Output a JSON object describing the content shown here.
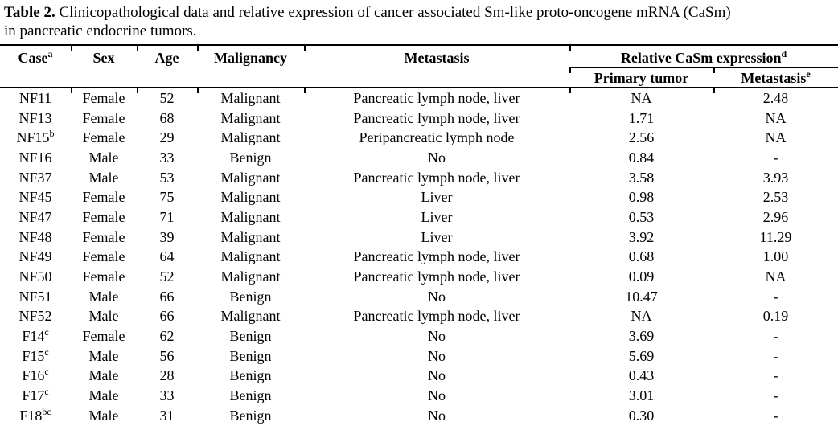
{
  "caption": {
    "label": "Table 2.",
    "line1": "Clinicopathological data and relative expression of cancer associated Sm-like proto-oncogene mRNA (CaSm)",
    "line2": "in pancreatic endocrine tumors."
  },
  "table": {
    "headers": {
      "case": {
        "label": "Case",
        "sup": "a"
      },
      "sex": "Sex",
      "age": "Age",
      "malignancy": "Malignancy",
      "metastasis": "Metastasis",
      "casm_group": {
        "label": "Relative CaSm expression",
        "sup": "d"
      },
      "primary_tumor": "Primary tumor",
      "metastasis_expr": {
        "label": "Metastasis",
        "sup": "e"
      }
    },
    "rows": [
      {
        "case": "NF11",
        "case_sup": "",
        "sex": "Female",
        "age": "52",
        "malignancy": "Malignant",
        "metastasis": "Pancreatic lymph node, liver",
        "primary_tumor": "NA",
        "metastasis_expr": "2.48"
      },
      {
        "case": "NF13",
        "case_sup": "",
        "sex": "Female",
        "age": "68",
        "malignancy": "Malignant",
        "metastasis": "Pancreatic lymph node, liver",
        "primary_tumor": "1.71",
        "metastasis_expr": "NA"
      },
      {
        "case": "NF15",
        "case_sup": "b",
        "sex": "Female",
        "age": "29",
        "malignancy": "Malignant",
        "metastasis": "Peripancreatic lymph node",
        "primary_tumor": "2.56",
        "metastasis_expr": "NA"
      },
      {
        "case": "NF16",
        "case_sup": "",
        "sex": "Male",
        "age": "33",
        "malignancy": "Benign",
        "metastasis": "No",
        "primary_tumor": "0.84",
        "metastasis_expr": "-"
      },
      {
        "case": "NF37",
        "case_sup": "",
        "sex": "Male",
        "age": "53",
        "malignancy": "Malignant",
        "metastasis": "Pancreatic lymph node, liver",
        "primary_tumor": "3.58",
        "metastasis_expr": "3.93"
      },
      {
        "case": "NF45",
        "case_sup": "",
        "sex": "Female",
        "age": "75",
        "malignancy": "Malignant",
        "metastasis": "Liver",
        "primary_tumor": "0.98",
        "metastasis_expr": "2.53"
      },
      {
        "case": "NF47",
        "case_sup": "",
        "sex": "Female",
        "age": "71",
        "malignancy": "Malignant",
        "metastasis": "Liver",
        "primary_tumor": "0.53",
        "metastasis_expr": "2.96"
      },
      {
        "case": "NF48",
        "case_sup": "",
        "sex": "Female",
        "age": "39",
        "malignancy": "Malignant",
        "metastasis": "Liver",
        "primary_tumor": "3.92",
        "metastasis_expr": "11.29"
      },
      {
        "case": "NF49",
        "case_sup": "",
        "sex": "Female",
        "age": "64",
        "malignancy": "Malignant",
        "metastasis": "Pancreatic lymph node, liver",
        "primary_tumor": "0.68",
        "metastasis_expr": "1.00"
      },
      {
        "case": "NF50",
        "case_sup": "",
        "sex": "Female",
        "age": "52",
        "malignancy": "Malignant",
        "metastasis": "Pancreatic lymph node, liver",
        "primary_tumor": "0.09",
        "metastasis_expr": "NA"
      },
      {
        "case": "NF51",
        "case_sup": "",
        "sex": "Male",
        "age": "66",
        "malignancy": "Benign",
        "metastasis": "No",
        "primary_tumor": "10.47",
        "metastasis_expr": "-"
      },
      {
        "case": "NF52",
        "case_sup": "",
        "sex": "Male",
        "age": "66",
        "malignancy": "Malignant",
        "metastasis": "Pancreatic lymph node, liver",
        "primary_tumor": "NA",
        "metastasis_expr": "0.19"
      },
      {
        "case": "F14",
        "case_sup": "c",
        "sex": "Female",
        "age": "62",
        "malignancy": "Benign",
        "metastasis": "No",
        "primary_tumor": "3.69",
        "metastasis_expr": "-"
      },
      {
        "case": "F15",
        "case_sup": "c",
        "sex": "Male",
        "age": "56",
        "malignancy": "Benign",
        "metastasis": "No",
        "primary_tumor": "5.69",
        "metastasis_expr": "-"
      },
      {
        "case": "F16",
        "case_sup": "c",
        "sex": "Male",
        "age": "28",
        "malignancy": "Benign",
        "metastasis": "No",
        "primary_tumor": "0.43",
        "metastasis_expr": "-"
      },
      {
        "case": "F17",
        "case_sup": "c",
        "sex": "Male",
        "age": "33",
        "malignancy": "Benign",
        "metastasis": "No",
        "primary_tumor": "3.01",
        "metastasis_expr": "-"
      },
      {
        "case": "F18",
        "case_sup": "bc",
        "sex": "Male",
        "age": "31",
        "malignancy": "Benign",
        "metastasis": "No",
        "primary_tumor": "0.30",
        "metastasis_expr": "-"
      }
    ]
  }
}
